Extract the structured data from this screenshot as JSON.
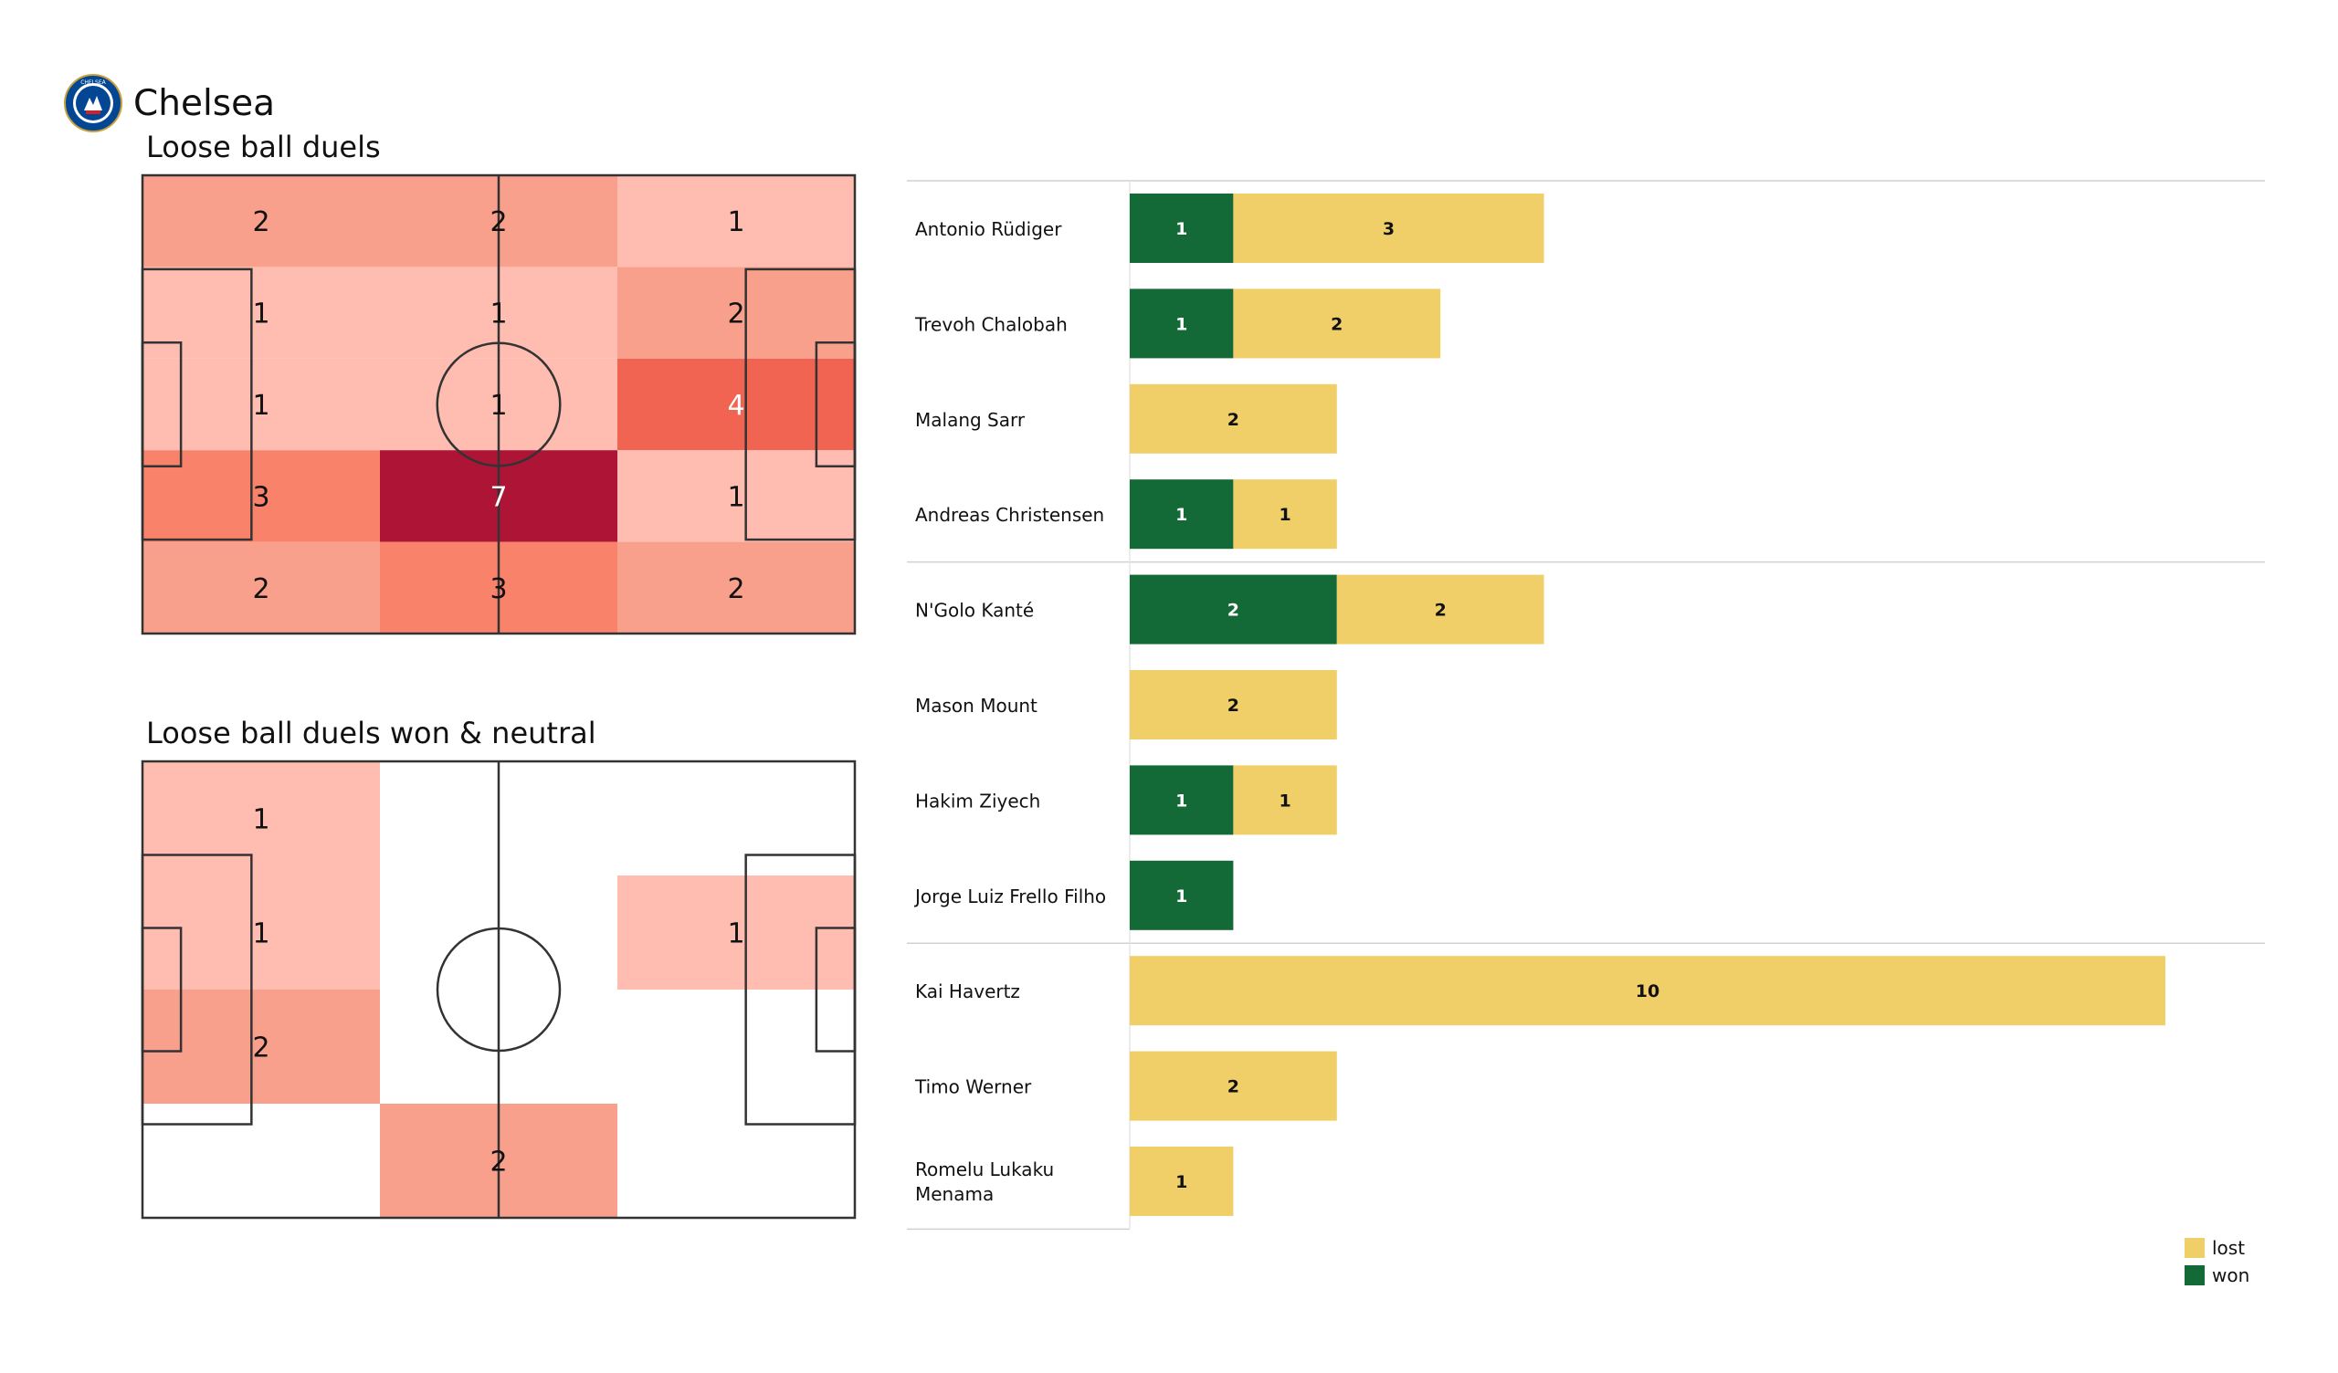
{
  "team": {
    "name": "Chelsea",
    "crest_icon": "chelsea-crest-icon",
    "crest_text": "CHELSEA"
  },
  "colors": {
    "won": "#146a37",
    "lost": "#f0cf69",
    "heat_low": "#ffbcb0",
    "heat_mid1": "#f9a08c",
    "heat_mid2": "#f9826a",
    "heat_high": "#f06451",
    "heat_max": "#ad1435",
    "pitch_line": "#333333"
  },
  "chart_data": [
    {
      "type": "heatmap",
      "title": "Loose ball duels",
      "grid_rows": 5,
      "grid_cols": 3,
      "values": [
        [
          2,
          2,
          1
        ],
        [
          1,
          1,
          2
        ],
        [
          1,
          1,
          4
        ],
        [
          3,
          7,
          1
        ],
        [
          2,
          3,
          2
        ]
      ]
    },
    {
      "type": "heatmap",
      "title": "Loose ball duels won & neutral",
      "grid_rows": 4,
      "grid_cols": 3,
      "values": [
        [
          1,
          0,
          0
        ],
        [
          1,
          0,
          1
        ],
        [
          2,
          0,
          0
        ],
        [
          0,
          2,
          0
        ]
      ]
    },
    {
      "type": "bar",
      "orientation": "horizontal",
      "stacked": true,
      "series": [
        {
          "name": "won",
          "values": [
            1,
            1,
            0,
            1,
            2,
            0,
            1,
            1,
            0,
            0,
            0
          ]
        },
        {
          "name": "lost",
          "values": [
            3,
            2,
            2,
            1,
            2,
            2,
            1,
            0,
            10,
            2,
            1
          ]
        }
      ],
      "categories": [
        [
          "Antonio Rüdiger"
        ],
        [
          "Trevoh Chalobah"
        ],
        [
          "Malang Sarr"
        ],
        [
          "Andreas Christensen"
        ],
        [
          "N'Golo Kanté"
        ],
        [
          "Mason Mount"
        ],
        [
          "Hakim Ziyech"
        ],
        [
          "Jorge Luiz Frello Filho"
        ],
        [
          "Kai Havertz"
        ],
        [
          "Timo Werner"
        ],
        [
          "Romelu Lukaku",
          "Menama"
        ]
      ],
      "groups": [
        [
          0,
          3
        ],
        [
          4,
          7
        ],
        [
          8,
          10
        ]
      ],
      "xlim": [
        0,
        11
      ],
      "legend": [
        "lost",
        "won"
      ],
      "legend_position": "bottom-right"
    }
  ]
}
